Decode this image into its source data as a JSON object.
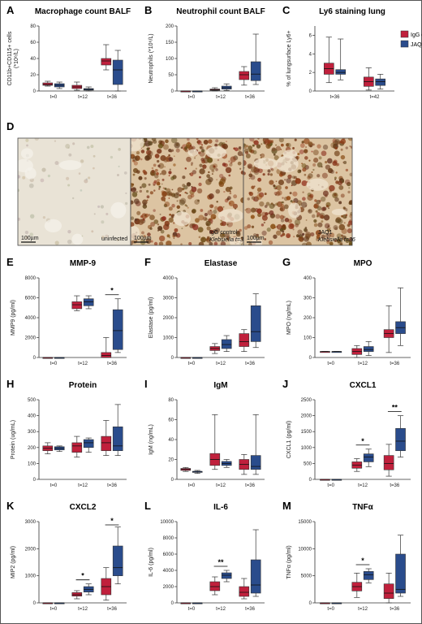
{
  "colors": {
    "igg": "#c0203c",
    "jaq1": "#2a4c8c"
  },
  "legend": {
    "igg": "IgG control",
    "jaq1": "JAQ1"
  },
  "micrographs": {
    "letter": "D",
    "panels": [
      {
        "scale": "100µm",
        "label1": "uninfected",
        "label2": "",
        "tone": "light"
      },
      {
        "scale": "100µm",
        "label1": "IgG control",
        "label2": "Klebsiella t=36",
        "tone": "dark"
      },
      {
        "scale": "100µm",
        "label1": "JAQ1",
        "label2": "Klebsiella t=36",
        "tone": "dark"
      }
    ]
  },
  "chart_data": [
    {
      "letter": "A",
      "type": "box",
      "title": "Macrophage count BALF",
      "ylabel": [
        "CD11b+CD115+ cells",
        "(*10⁶/L)"
      ],
      "ylim": [
        0,
        80
      ],
      "yticks": [
        0,
        20,
        40,
        60,
        80
      ],
      "groups": [
        "t=0",
        "t=12",
        "t=36"
      ],
      "boxes": [
        {
          "group": 0,
          "series": "igg",
          "stats": [
            6,
            7,
            8,
            10,
            12
          ]
        },
        {
          "group": 0,
          "series": "jaq1",
          "stats": [
            3,
            5,
            7,
            9,
            11
          ]
        },
        {
          "group": 1,
          "series": "igg",
          "stats": [
            1,
            3,
            5,
            7,
            11
          ]
        },
        {
          "group": 1,
          "series": "jaq1",
          "stats": [
            0,
            1,
            2,
            3,
            5
          ]
        },
        {
          "group": 2,
          "series": "igg",
          "stats": [
            26,
            32,
            37,
            40,
            57
          ]
        },
        {
          "group": 2,
          "series": "jaq1",
          "stats": [
            0,
            8,
            26,
            38,
            50
          ]
        }
      ],
      "sig": []
    },
    {
      "letter": "B",
      "type": "box",
      "title": "Neutrophil count BALF",
      "ylabel": [
        "Neutrophils (*10⁶/L)"
      ],
      "ylim": [
        0,
        200
      ],
      "yticks": [
        0,
        50,
        100,
        150,
        200
      ],
      "groups": [
        "t=0",
        "t=12",
        "t=36"
      ],
      "boxes": [
        {
          "group": 0,
          "series": "igg",
          "stats": [
            0,
            0,
            0,
            0,
            0
          ]
        },
        {
          "group": 0,
          "series": "jaq1",
          "stats": [
            0,
            0,
            0,
            0,
            0
          ]
        },
        {
          "group": 1,
          "series": "igg",
          "stats": [
            0,
            2,
            4,
            6,
            10
          ]
        },
        {
          "group": 1,
          "series": "jaq1",
          "stats": [
            2,
            6,
            10,
            15,
            22
          ]
        },
        {
          "group": 2,
          "series": "igg",
          "stats": [
            18,
            35,
            50,
            60,
            75
          ]
        },
        {
          "group": 2,
          "series": "jaq1",
          "stats": [
            20,
            32,
            52,
            90,
            175
          ]
        }
      ],
      "sig": []
    },
    {
      "letter": "C",
      "type": "box",
      "title": "Ly6 staining lung",
      "ylabel": [
        "% of lungsurface Ly6+"
      ],
      "ylim": [
        0,
        7
      ],
      "yticks": [
        0,
        2,
        4,
        6
      ],
      "groups": [
        "t=36",
        "t=42"
      ],
      "boxes": [
        {
          "group": 0,
          "series": "igg",
          "stats": [
            0.9,
            1.8,
            2.4,
            3.0,
            5.8
          ]
        },
        {
          "group": 0,
          "series": "jaq1",
          "stats": [
            1.2,
            1.8,
            2.0,
            2.3,
            5.6
          ]
        },
        {
          "group": 1,
          "series": "igg",
          "stats": [
            0.1,
            0.5,
            1.0,
            1.5,
            2.5
          ]
        },
        {
          "group": 1,
          "series": "jaq1",
          "stats": [
            0.2,
            0.6,
            1.0,
            1.3,
            1.8
          ]
        }
      ],
      "sig": []
    },
    {
      "letter": "E",
      "type": "box",
      "title": "MMP-9",
      "ylabel": [
        "MMP9 (pg/ml)"
      ],
      "ylim": [
        0,
        8000
      ],
      "yticks": [
        0,
        2000,
        4000,
        6000,
        8000
      ],
      "groups": [
        "t=0",
        "t=12",
        "t=36"
      ],
      "boxes": [
        {
          "group": 0,
          "series": "igg",
          "stats": [
            0,
            0,
            0,
            0,
            0
          ]
        },
        {
          "group": 0,
          "series": "jaq1",
          "stats": [
            0,
            0,
            0,
            0,
            0
          ]
        },
        {
          "group": 1,
          "series": "igg",
          "stats": [
            4700,
            4900,
            5300,
            5600,
            6200
          ]
        },
        {
          "group": 1,
          "series": "jaq1",
          "stats": [
            4900,
            5200,
            5600,
            5900,
            6200
          ]
        },
        {
          "group": 2,
          "series": "igg",
          "stats": [
            0,
            0,
            200,
            500,
            2000
          ]
        },
        {
          "group": 2,
          "series": "jaq1",
          "stats": [
            500,
            800,
            2700,
            4800,
            5900
          ]
        }
      ],
      "sig": [
        {
          "group": 2,
          "label": "*"
        }
      ]
    },
    {
      "letter": "F",
      "type": "box",
      "title": "Elastase",
      "ylabel": [
        "Elastase (pg/ml)"
      ],
      "ylim": [
        0,
        4000
      ],
      "yticks": [
        0,
        1000,
        2000,
        3000,
        4000
      ],
      "groups": [
        "t=0",
        "t=12",
        "t=36"
      ],
      "boxes": [
        {
          "group": 0,
          "series": "igg",
          "stats": [
            0,
            0,
            0,
            0,
            0
          ]
        },
        {
          "group": 0,
          "series": "jaq1",
          "stats": [
            0,
            0,
            0,
            0,
            0
          ]
        },
        {
          "group": 1,
          "series": "igg",
          "stats": [
            200,
            350,
            450,
            550,
            700
          ]
        },
        {
          "group": 1,
          "series": "jaq1",
          "stats": [
            300,
            450,
            650,
            900,
            1100
          ]
        },
        {
          "group": 2,
          "series": "igg",
          "stats": [
            300,
            550,
            800,
            1200,
            1400
          ]
        },
        {
          "group": 2,
          "series": "jaq1",
          "stats": [
            500,
            800,
            1300,
            2600,
            3200
          ]
        }
      ],
      "sig": []
    },
    {
      "letter": "G",
      "type": "box",
      "title": "MPO",
      "ylabel": [
        "MPO (ng/mL)"
      ],
      "ylim": [
        0,
        400
      ],
      "yticks": [
        0,
        100,
        200,
        300,
        400
      ],
      "groups": [
        "t=0",
        "t=12",
        "t=36"
      ],
      "boxes": [
        {
          "group": 0,
          "series": "igg",
          "stats": [
            30,
            30,
            30,
            30,
            30
          ]
        },
        {
          "group": 0,
          "series": "jaq1",
          "stats": [
            30,
            30,
            30,
            30,
            30
          ]
        },
        {
          "group": 1,
          "series": "igg",
          "stats": [
            0,
            15,
            30,
            45,
            60
          ]
        },
        {
          "group": 1,
          "series": "jaq1",
          "stats": [
            10,
            30,
            40,
            55,
            80
          ]
        },
        {
          "group": 2,
          "series": "igg",
          "stats": [
            25,
            100,
            120,
            140,
            260
          ]
        },
        {
          "group": 2,
          "series": "jaq1",
          "stats": [
            60,
            120,
            150,
            180,
            350
          ]
        }
      ],
      "sig": []
    },
    {
      "letter": "H",
      "type": "box",
      "title": "Protein",
      "ylabel": [
        "Protein (ug/mL)"
      ],
      "ylim": [
        0,
        500
      ],
      "yticks": [
        0,
        100,
        200,
        300,
        400,
        500
      ],
      "groups": [
        "t=0",
        "t=12",
        "t=36"
      ],
      "boxes": [
        {
          "group": 0,
          "series": "igg",
          "stats": [
            160,
            180,
            195,
            210,
            230
          ]
        },
        {
          "group": 0,
          "series": "jaq1",
          "stats": [
            175,
            185,
            195,
            205,
            210
          ]
        },
        {
          "group": 1,
          "series": "igg",
          "stats": [
            140,
            170,
            210,
            230,
            270
          ]
        },
        {
          "group": 1,
          "series": "jaq1",
          "stats": [
            170,
            200,
            230,
            250,
            260
          ]
        },
        {
          "group": 2,
          "series": "igg",
          "stats": [
            150,
            180,
            230,
            270,
            370
          ]
        },
        {
          "group": 2,
          "series": "jaq1",
          "stats": [
            150,
            180,
            210,
            330,
            470
          ]
        }
      ],
      "sig": []
    },
    {
      "letter": "I",
      "type": "box",
      "title": "IgM",
      "ylabel": [
        "IgM (ng/mL)"
      ],
      "ylim": [
        0,
        80
      ],
      "yticks": [
        0,
        20,
        40,
        60,
        80
      ],
      "groups": [
        "t=0",
        "t=12",
        "t=36"
      ],
      "boxes": [
        {
          "group": 0,
          "series": "igg",
          "stats": [
            8,
            9,
            10,
            11,
            12
          ]
        },
        {
          "group": 0,
          "series": "jaq1",
          "stats": [
            6,
            7,
            8,
            8,
            9
          ]
        },
        {
          "group": 1,
          "series": "igg",
          "stats": [
            10,
            14,
            20,
            26,
            65
          ]
        },
        {
          "group": 1,
          "series": "jaq1",
          "stats": [
            12,
            14,
            16,
            18,
            20
          ]
        },
        {
          "group": 2,
          "series": "igg",
          "stats": [
            5,
            10,
            15,
            20,
            25
          ]
        },
        {
          "group": 2,
          "series": "jaq1",
          "stats": [
            5,
            10,
            13,
            24,
            65
          ]
        }
      ],
      "sig": []
    },
    {
      "letter": "J",
      "type": "box",
      "title": "CXCL1",
      "ylabel": [
        "CXCL1 (pg/ml)"
      ],
      "ylim": [
        0,
        2500
      ],
      "yticks": [
        0,
        500,
        1000,
        1500,
        2000,
        2500
      ],
      "groups": [
        "t=0",
        "t=12",
        "t=36"
      ],
      "boxes": [
        {
          "group": 0,
          "series": "igg",
          "stats": [
            0,
            0,
            0,
            0,
            0
          ]
        },
        {
          "group": 0,
          "series": "jaq1",
          "stats": [
            0,
            0,
            0,
            0,
            0
          ]
        },
        {
          "group": 1,
          "series": "igg",
          "stats": [
            250,
            350,
            450,
            550,
            650
          ]
        },
        {
          "group": 1,
          "series": "jaq1",
          "stats": [
            400,
            550,
            700,
            800,
            950
          ]
        },
        {
          "group": 2,
          "series": "igg",
          "stats": [
            100,
            300,
            500,
            750,
            1100
          ]
        },
        {
          "group": 2,
          "series": "jaq1",
          "stats": [
            700,
            900,
            1200,
            1600,
            2000
          ]
        }
      ],
      "sig": [
        {
          "group": 1,
          "label": "*"
        },
        {
          "group": 2,
          "label": "**"
        }
      ]
    },
    {
      "letter": "K",
      "type": "box",
      "title": "CXCL2",
      "ylabel": [
        "MIP2 (pg/ml)"
      ],
      "ylim": [
        0,
        3000
      ],
      "yticks": [
        0,
        1000,
        2000,
        3000
      ],
      "groups": [
        "t=0",
        "t=12",
        "t=36"
      ],
      "boxes": [
        {
          "group": 0,
          "series": "igg",
          "stats": [
            0,
            0,
            0,
            0,
            0
          ]
        },
        {
          "group": 0,
          "series": "jaq1",
          "stats": [
            0,
            0,
            0,
            0,
            0
          ]
        },
        {
          "group": 1,
          "series": "igg",
          "stats": [
            150,
            250,
            300,
            380,
            450
          ]
        },
        {
          "group": 1,
          "series": "jaq1",
          "stats": [
            300,
            400,
            500,
            600,
            700
          ]
        },
        {
          "group": 2,
          "series": "igg",
          "stats": [
            100,
            300,
            600,
            900,
            1300
          ]
        },
        {
          "group": 2,
          "series": "jaq1",
          "stats": [
            700,
            1000,
            1300,
            2100,
            2800
          ]
        }
      ],
      "sig": [
        {
          "group": 1,
          "label": "*"
        },
        {
          "group": 2,
          "label": "*"
        }
      ]
    },
    {
      "letter": "L",
      "type": "box",
      "title": "IL-6",
      "ylabel": [
        "IL-6 (pg/ml)"
      ],
      "ylim": [
        0,
        10000
      ],
      "yticks": [
        0,
        2000,
        4000,
        6000,
        8000,
        10000
      ],
      "groups": [
        "t=0",
        "t=12",
        "t=36"
      ],
      "boxes": [
        {
          "group": 0,
          "series": "igg",
          "stats": [
            0,
            0,
            0,
            0,
            0
          ]
        },
        {
          "group": 0,
          "series": "jaq1",
          "stats": [
            0,
            0,
            0,
            0,
            0
          ]
        },
        {
          "group": 1,
          "series": "igg",
          "stats": [
            1000,
            1500,
            2000,
            2600,
            3200
          ]
        },
        {
          "group": 1,
          "series": "jaq1",
          "stats": [
            2600,
            3000,
            3400,
            3700,
            4000
          ]
        },
        {
          "group": 2,
          "series": "igg",
          "stats": [
            500,
            800,
            1300,
            2000,
            3000
          ]
        },
        {
          "group": 2,
          "series": "jaq1",
          "stats": [
            800,
            1200,
            2200,
            5300,
            9000
          ]
        }
      ],
      "sig": [
        {
          "group": 1,
          "label": "**"
        }
      ]
    },
    {
      "letter": "M",
      "type": "box",
      "title": "TNFα",
      "ylabel": [
        "TNFα (pg/ml)"
      ],
      "ylim": [
        0,
        15000
      ],
      "yticks": [
        0,
        5000,
        10000,
        15000
      ],
      "groups": [
        "t=0",
        "t=12",
        "t=36"
      ],
      "boxes": [
        {
          "group": 0,
          "series": "igg",
          "stats": [
            0,
            0,
            0,
            0,
            0
          ]
        },
        {
          "group": 0,
          "series": "jaq1",
          "stats": [
            0,
            0,
            0,
            0,
            0
          ]
        },
        {
          "group": 1,
          "series": "igg",
          "stats": [
            1000,
            2200,
            3000,
            3800,
            5500
          ]
        },
        {
          "group": 1,
          "series": "jaq1",
          "stats": [
            3700,
            4300,
            5200,
            5800,
            6300
          ]
        },
        {
          "group": 2,
          "series": "igg",
          "stats": [
            0,
            800,
            1800,
            3500,
            5500
          ]
        },
        {
          "group": 2,
          "series": "jaq1",
          "stats": [
            1200,
            1800,
            2500,
            9000,
            12500
          ]
        }
      ],
      "sig": [
        {
          "group": 1,
          "label": "*"
        }
      ]
    }
  ]
}
